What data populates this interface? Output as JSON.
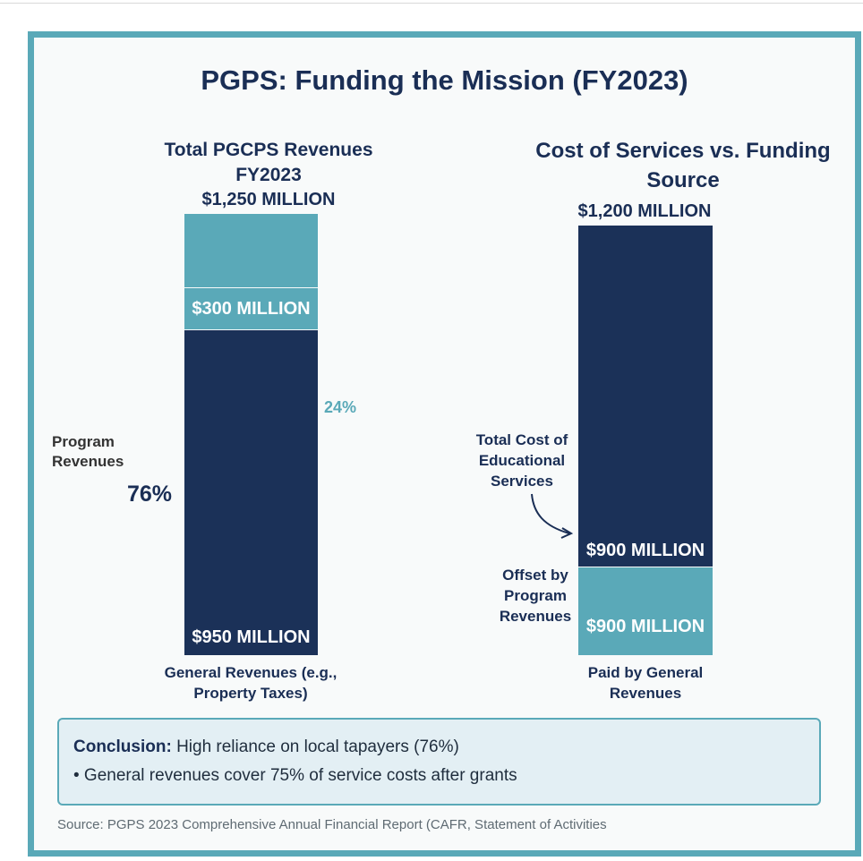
{
  "title": "PGPS: Funding the Mission (FY2023)",
  "chart_data": [
    {
      "type": "bar",
      "title": "Total PGCPS Revenues FY2023",
      "total_label": "$1,250 MILLION",
      "stack_order": "top-to-bottom",
      "segments": [
        {
          "name": "Program Revenues",
          "value": 300,
          "label": "$300 MILLION",
          "percent_label": "24%",
          "color": "#5aa9b8"
        },
        {
          "name": "General Revenues",
          "value": 950,
          "label": "$950 MILLION",
          "percent_label": "76%",
          "color": "#1b3158"
        }
      ],
      "segment_texts": {
        "program": "Program Revenues",
        "general_caption": "General Revenues (e.g., Property Taxes)"
      },
      "top_fill_color": "#5aa9b8"
    },
    {
      "type": "bar",
      "title": "Cost of Services vs. Funding Source",
      "total_label": "$1,200 MILLION",
      "segments": [
        {
          "name": "Total Cost of Educational Services",
          "value": 900,
          "label": "$900 MILLION",
          "color": "#1b3158"
        },
        {
          "name": "Offset by Program Revenues",
          "value": 900,
          "label": "$900 MILLION",
          "color": "#5aa9b8"
        }
      ],
      "annotations": {
        "cost_label": "Total Cost of Educational Services",
        "offset_label": "Offset by Program Revenues",
        "caption": "Paid by General Revenues"
      }
    }
  ],
  "conclusion": {
    "heading": "Conclusion:",
    "text": "High reliance on local tapayers (76%)",
    "bullet": "• General revenues cover 75% of service costs after grants"
  },
  "source": "Source: PGPS 2023 Comprehensive Annual Financial Report (CAFR, Statement of Activities"
}
